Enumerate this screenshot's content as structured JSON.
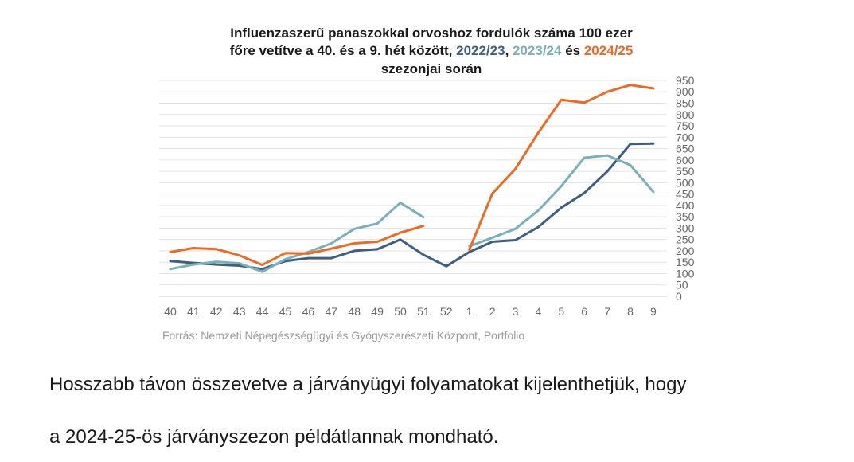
{
  "chart_data": {
    "type": "line",
    "title_lines": [
      [
        {
          "text": "Influenzaszerű panaszokkal orvoshoz fordulók száma 100 ezer",
          "color": "#1a1a1a"
        }
      ],
      [
        {
          "text": "főre vetítve a 40. és a 9. hét között, ",
          "color": "#1a1a1a"
        },
        {
          "text": "2022/23",
          "color": "#3d5f82"
        },
        {
          "text": ", ",
          "color": "#1a1a1a"
        },
        {
          "text": "2023/24",
          "color": "#7ab0b8"
        },
        {
          "text": " és ",
          "color": "#1a1a1a"
        },
        {
          "text": "2024/25",
          "color": "#ee6a22"
        }
      ],
      [
        {
          "text": "szezonjai során",
          "color": "#1a1a1a"
        }
      ]
    ],
    "categories": [
      "40",
      "41",
      "42",
      "43",
      "44",
      "45",
      "46",
      "47",
      "48",
      "49",
      "50",
      "51",
      "52",
      "1",
      "2",
      "3",
      "4",
      "5",
      "6",
      "7",
      "8",
      "9"
    ],
    "yticks": [
      0,
      50,
      100,
      150,
      200,
      250,
      300,
      350,
      400,
      450,
      500,
      550,
      600,
      650,
      700,
      750,
      800,
      850,
      900,
      950
    ],
    "ylim": [
      0,
      950
    ],
    "grid": true,
    "series": [
      {
        "name": "2022/23",
        "color": "#3d5f82",
        "values": [
          155,
          147,
          140,
          135,
          120,
          155,
          168,
          168,
          200,
          207,
          250,
          183,
          132,
          195,
          240,
          247,
          305,
          390,
          455,
          550,
          670,
          672
        ]
      },
      {
        "name": "2023/24",
        "color": "#7ab0b8",
        "values": [
          120,
          140,
          152,
          145,
          108,
          163,
          195,
          233,
          297,
          320,
          412,
          348,
          null,
          220,
          258,
          297,
          378,
          485,
          610,
          620,
          577,
          460
        ]
      },
      {
        "name": "2024/25",
        "color": "#ee6a22",
        "values": [
          195,
          212,
          208,
          180,
          138,
          190,
          188,
          210,
          233,
          240,
          280,
          310,
          null,
          205,
          452,
          560,
          720,
          865,
          852,
          900,
          930,
          915
        ]
      }
    ]
  },
  "source": "Forrás: Nemzeti Népegészségügyi és Gyógyszerészeti Központ, Portfolio",
  "article": {
    "line1": "Hosszabb távon összevetve a járványügyi folyamatokat kijelenthetjük, hogy",
    "line2": "a 2024-25-ös járványszezon példátlannak mondható."
  }
}
